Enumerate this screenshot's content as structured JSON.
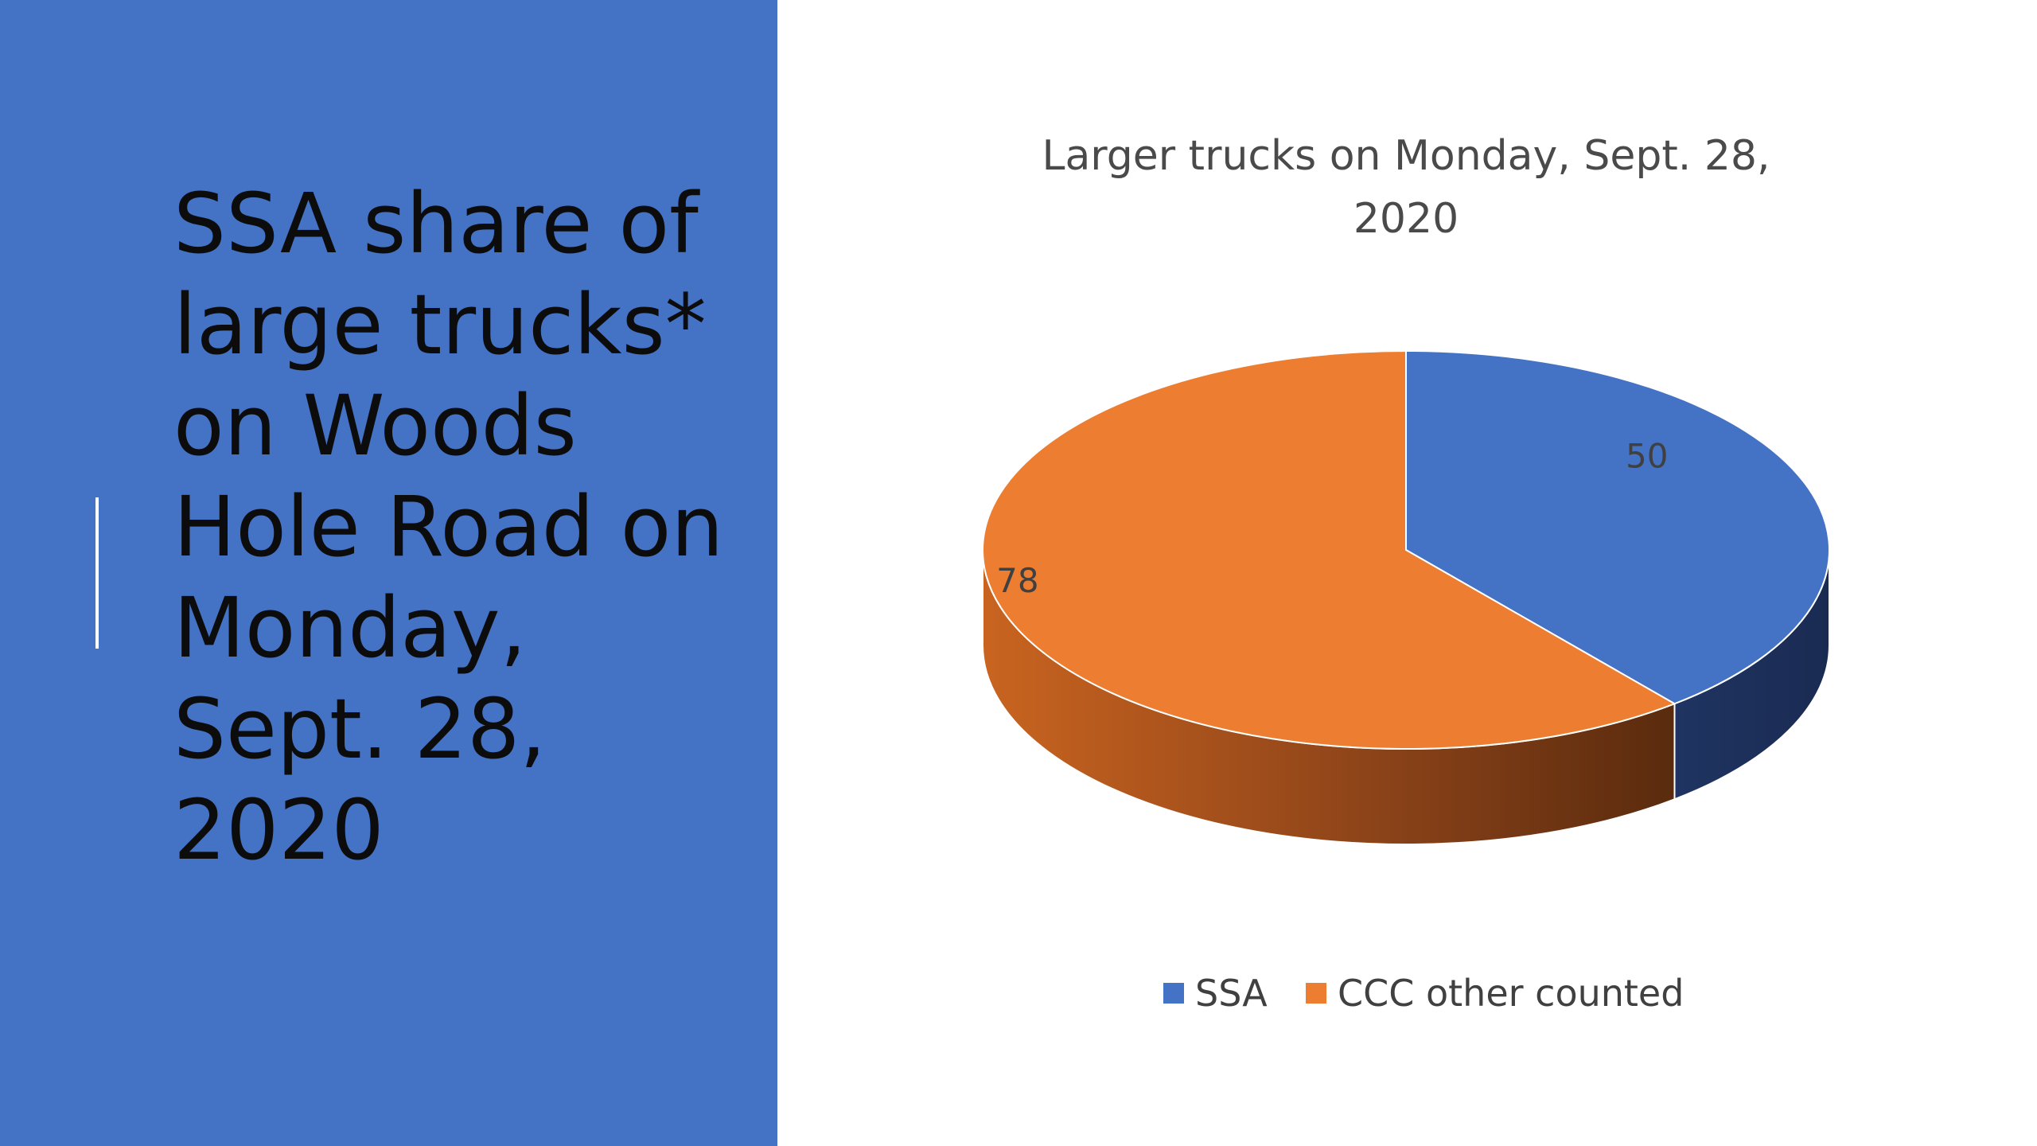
{
  "slide": {
    "title": "SSA share of\nlarge trucks*\non Woods\nHole Road on\nMonday,\nSept. 28,\n2020",
    "panel_color": "#4472c4"
  },
  "chart_data": {
    "type": "pie",
    "style": "3d",
    "title_lines": [
      "Larger trucks on Monday, Sept. 28,",
      "2020"
    ],
    "categories": [
      "SSA",
      "CCC other counted"
    ],
    "values": [
      50,
      78
    ],
    "colors": [
      "#4472c4",
      "#ed7d31"
    ],
    "data_labels": [
      "50",
      "78"
    ],
    "legend_position": "bottom"
  }
}
